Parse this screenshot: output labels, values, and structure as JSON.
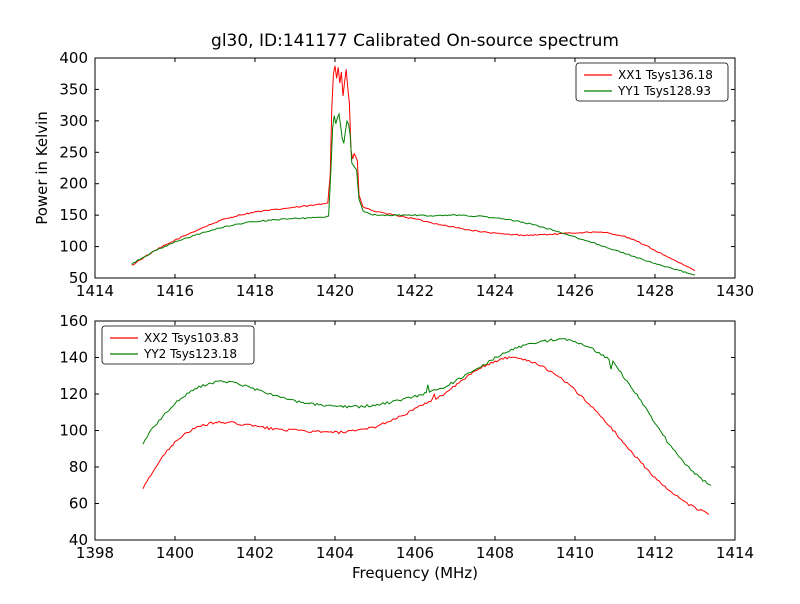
{
  "figure": {
    "background": "#ffffff",
    "frame_color": "#000000"
  },
  "chart_data": [
    {
      "type": "line",
      "title": "gl30, ID:141177 Calibrated On-source spectrum",
      "xlabel": "",
      "ylabel": "Power in Kelvin",
      "xlim": [
        1414,
        1430
      ],
      "ylim": [
        50,
        400
      ],
      "xticks": [
        1414,
        1416,
        1418,
        1420,
        1422,
        1424,
        1426,
        1428,
        1430
      ],
      "yticks": [
        50,
        100,
        150,
        200,
        250,
        300,
        350,
        400
      ],
      "grid": false,
      "noise": 1.0,
      "legend": {
        "position": "top-right"
      },
      "series": [
        {
          "name": "XX1 Tsys136.18",
          "color": "#ff0000",
          "points": [
            [
              1414.92,
              70
            ],
            [
              1415.2,
              82
            ],
            [
              1415.6,
              97
            ],
            [
              1416.0,
              110
            ],
            [
              1416.4,
              122
            ],
            [
              1416.8,
              133
            ],
            [
              1417.2,
              143
            ],
            [
              1417.6,
              150
            ],
            [
              1418.0,
              155
            ],
            [
              1418.4,
              158
            ],
            [
              1418.8,
              161
            ],
            [
              1419.2,
              164
            ],
            [
              1419.5,
              166
            ],
            [
              1419.7,
              168
            ],
            [
              1419.82,
              170
            ],
            [
              1419.88,
              215
            ],
            [
              1419.92,
              320
            ],
            [
              1419.96,
              375
            ],
            [
              1420.0,
              388
            ],
            [
              1420.04,
              368
            ],
            [
              1420.08,
              385
            ],
            [
              1420.12,
              360
            ],
            [
              1420.16,
              378
            ],
            [
              1420.2,
              340
            ],
            [
              1420.24,
              362
            ],
            [
              1420.28,
              382
            ],
            [
              1420.32,
              352
            ],
            [
              1420.36,
              328
            ],
            [
              1420.4,
              252
            ],
            [
              1420.44,
              240
            ],
            [
              1420.48,
              248
            ],
            [
              1420.52,
              242
            ],
            [
              1420.56,
              236
            ],
            [
              1420.6,
              182
            ],
            [
              1420.7,
              163
            ],
            [
              1420.9,
              158
            ],
            [
              1421.2,
              153
            ],
            [
              1421.6,
              149
            ],
            [
              1422.0,
              144
            ],
            [
              1422.4,
              138
            ],
            [
              1422.8,
              133
            ],
            [
              1423.2,
              128
            ],
            [
              1423.6,
              124
            ],
            [
              1424.0,
              121
            ],
            [
              1424.4,
              119
            ],
            [
              1424.8,
              118
            ],
            [
              1425.2,
              119
            ],
            [
              1425.6,
              120
            ],
            [
              1426.0,
              122
            ],
            [
              1426.4,
              123
            ],
            [
              1426.8,
              122
            ],
            [
              1427.2,
              117
            ],
            [
              1427.6,
              107
            ],
            [
              1428.0,
              94
            ],
            [
              1428.4,
              81
            ],
            [
              1428.7,
              71
            ],
            [
              1429.0,
              62
            ]
          ]
        },
        {
          "name": "YY1 Tsys128.93",
          "color": "#008000",
          "points": [
            [
              1414.92,
              72
            ],
            [
              1415.2,
              83
            ],
            [
              1415.6,
              96
            ],
            [
              1416.0,
              107
            ],
            [
              1416.4,
              116
            ],
            [
              1416.8,
              124
            ],
            [
              1417.2,
              131
            ],
            [
              1417.6,
              136
            ],
            [
              1418.0,
              140
            ],
            [
              1418.4,
              142
            ],
            [
              1418.8,
              144
            ],
            [
              1419.2,
              145
            ],
            [
              1419.5,
              146
            ],
            [
              1419.7,
              146
            ],
            [
              1419.84,
              148
            ],
            [
              1419.9,
              225
            ],
            [
              1419.94,
              288
            ],
            [
              1419.98,
              308
            ],
            [
              1420.02,
              296
            ],
            [
              1420.06,
              306
            ],
            [
              1420.1,
              310
            ],
            [
              1420.14,
              292
            ],
            [
              1420.18,
              272
            ],
            [
              1420.22,
              265
            ],
            [
              1420.26,
              284
            ],
            [
              1420.3,
              300
            ],
            [
              1420.34,
              295
            ],
            [
              1420.38,
              278
            ],
            [
              1420.42,
              232
            ],
            [
              1420.48,
              227
            ],
            [
              1420.54,
              222
            ],
            [
              1420.6,
              176
            ],
            [
              1420.7,
              156
            ],
            [
              1420.9,
              151
            ],
            [
              1421.2,
              150
            ],
            [
              1421.6,
              150
            ],
            [
              1422.0,
              150
            ],
            [
              1422.5,
              149
            ],
            [
              1423.0,
              150
            ],
            [
              1423.4,
              149
            ],
            [
              1423.8,
              147
            ],
            [
              1424.2,
              144
            ],
            [
              1424.6,
              140
            ],
            [
              1425.0,
              134
            ],
            [
              1425.4,
              127
            ],
            [
              1425.8,
              119
            ],
            [
              1426.2,
              111
            ],
            [
              1426.6,
              103
            ],
            [
              1427.0,
              94
            ],
            [
              1427.4,
              86
            ],
            [
              1427.8,
              77
            ],
            [
              1428.2,
              69
            ],
            [
              1428.6,
              62
            ],
            [
              1429.0,
              55
            ]
          ]
        }
      ]
    },
    {
      "type": "line",
      "title": "",
      "xlabel": "Frequency (MHz)",
      "ylabel": "",
      "xlim": [
        1398,
        1414
      ],
      "ylim": [
        40,
        160
      ],
      "xticks": [
        1398,
        1400,
        1402,
        1404,
        1406,
        1408,
        1410,
        1412,
        1414
      ],
      "yticks": [
        40,
        60,
        80,
        100,
        120,
        140,
        160
      ],
      "grid": false,
      "noise": 0.7,
      "legend": {
        "position": "top-left"
      },
      "series": [
        {
          "name": "XX2 Tsys103.83",
          "color": "#ff0000",
          "points": [
            [
              1399.2,
              68
            ],
            [
              1399.4,
              76
            ],
            [
              1399.7,
              86
            ],
            [
              1400.0,
              94
            ],
            [
              1400.3,
              99
            ],
            [
              1400.6,
              102
            ],
            [
              1400.9,
              104
            ],
            [
              1401.2,
              104.5
            ],
            [
              1401.5,
              104
            ],
            [
              1401.8,
              103
            ],
            [
              1402.1,
              102
            ],
            [
              1402.4,
              101
            ],
            [
              1402.7,
              100.5
            ],
            [
              1403.0,
              100
            ],
            [
              1403.4,
              99.5
            ],
            [
              1403.8,
              99
            ],
            [
              1404.2,
              99
            ],
            [
              1404.6,
              100
            ],
            [
              1405.0,
              102
            ],
            [
              1405.4,
              105.5
            ],
            [
              1405.8,
              109.5
            ],
            [
              1406.2,
              114
            ],
            [
              1406.44,
              117
            ],
            [
              1406.48,
              120.5
            ],
            [
              1406.52,
              117.5
            ],
            [
              1406.8,
              121
            ],
            [
              1407.1,
              126
            ],
            [
              1407.4,
              131
            ],
            [
              1407.7,
              135
            ],
            [
              1408.0,
              138
            ],
            [
              1408.3,
              140
            ],
            [
              1408.6,
              139.5
            ],
            [
              1408.9,
              138
            ],
            [
              1409.2,
              135
            ],
            [
              1409.5,
              131
            ],
            [
              1409.8,
              126
            ],
            [
              1410.1,
              120
            ],
            [
              1410.4,
              113.5
            ],
            [
              1410.7,
              106.5
            ],
            [
              1411.0,
              99
            ],
            [
              1411.3,
              91
            ],
            [
              1411.6,
              83.5
            ],
            [
              1411.9,
              76.5
            ],
            [
              1412.2,
              70
            ],
            [
              1412.5,
              64.5
            ],
            [
              1412.8,
              60
            ],
            [
              1413.1,
              56.5
            ],
            [
              1413.35,
              54
            ]
          ]
        },
        {
          "name": "YY2 Tsys123.18",
          "color": "#008000",
          "points": [
            [
              1399.2,
              93
            ],
            [
              1399.4,
              100
            ],
            [
              1399.7,
              108
            ],
            [
              1400.0,
              115
            ],
            [
              1400.3,
              120
            ],
            [
              1400.6,
              124
            ],
            [
              1400.9,
              126
            ],
            [
              1401.2,
              127
            ],
            [
              1401.5,
              126
            ],
            [
              1401.8,
              124
            ],
            [
              1402.1,
              122
            ],
            [
              1402.4,
              120
            ],
            [
              1402.7,
              118
            ],
            [
              1403.0,
              116
            ],
            [
              1403.4,
              114.5
            ],
            [
              1403.8,
              113.5
            ],
            [
              1404.2,
              113
            ],
            [
              1404.6,
              113
            ],
            [
              1405.0,
              114
            ],
            [
              1405.4,
              115.5
            ],
            [
              1405.8,
              117.5
            ],
            [
              1406.2,
              120
            ],
            [
              1406.28,
              121
            ],
            [
              1406.32,
              125
            ],
            [
              1406.36,
              121.5
            ],
            [
              1406.7,
              123.5
            ],
            [
              1407.0,
              127
            ],
            [
              1407.3,
              130.5
            ],
            [
              1407.6,
              134.5
            ],
            [
              1407.9,
              138.5
            ],
            [
              1408.2,
              142
            ],
            [
              1408.5,
              145
            ],
            [
              1408.8,
              147
            ],
            [
              1409.1,
              148.5
            ],
            [
              1409.4,
              149.5
            ],
            [
              1409.7,
              150
            ],
            [
              1410.0,
              149
            ],
            [
              1410.3,
              146.5
            ],
            [
              1410.6,
              142.5
            ],
            [
              1410.85,
              139
            ],
            [
              1410.9,
              134
            ],
            [
              1410.95,
              138
            ],
            [
              1411.2,
              130
            ],
            [
              1411.5,
              121
            ],
            [
              1411.8,
              111
            ],
            [
              1412.1,
              101
            ],
            [
              1412.4,
              91
            ],
            [
              1412.7,
              83
            ],
            [
              1413.0,
              76.5
            ],
            [
              1413.3,
              71
            ],
            [
              1413.4,
              70
            ]
          ]
        }
      ]
    }
  ]
}
